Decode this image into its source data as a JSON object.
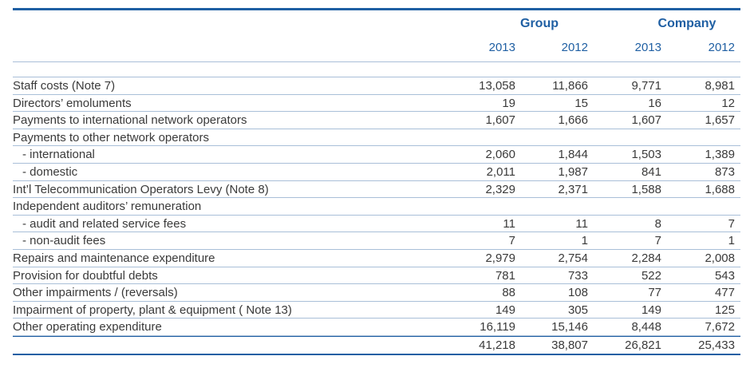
{
  "header": {
    "group_label": "Group",
    "company_label": "Company",
    "years": [
      "2013",
      "2012",
      "2013",
      "2012"
    ]
  },
  "rows": [
    {
      "label": "Staff costs (Note 7)",
      "values": [
        "13,058",
        "11,866",
        "9,771",
        "8,981"
      ],
      "indent": false
    },
    {
      "label": "Directors’ emoluments",
      "values": [
        "19",
        "15",
        "16",
        "12"
      ],
      "indent": false
    },
    {
      "label": "Payments to international network operators",
      "values": [
        "1,607",
        "1,666",
        "1,607",
        "1,657"
      ],
      "indent": false
    },
    {
      "label": "Payments to other network operators",
      "values": [
        "",
        "",
        "",
        ""
      ],
      "indent": false
    },
    {
      "label": "- international",
      "values": [
        "2,060",
        "1,844",
        "1,503",
        "1,389"
      ],
      "indent": true
    },
    {
      "label": "- domestic",
      "values": [
        "2,011",
        "1,987",
        "841",
        "873"
      ],
      "indent": true
    },
    {
      "label": "Int’l Telecommunication Operators Levy (Note 8)",
      "values": [
        "2,329",
        "2,371",
        "1,588",
        "1,688"
      ],
      "indent": false
    },
    {
      "label": "Independent auditors’ remuneration",
      "values": [
        "",
        "",
        "",
        ""
      ],
      "indent": false
    },
    {
      "label": "- audit and related service fees",
      "values": [
        "11",
        "11",
        "8",
        "7"
      ],
      "indent": true
    },
    {
      "label": "- non-audit fees",
      "values": [
        "7",
        "1",
        "7",
        "1"
      ],
      "indent": true
    },
    {
      "label": "Repairs and maintenance expenditure",
      "values": [
        "2,979",
        "2,754",
        "2,284",
        "2,008"
      ],
      "indent": false
    },
    {
      "label": "Provision for doubtful debts",
      "values": [
        "781",
        "733",
        "522",
        "543"
      ],
      "indent": false
    },
    {
      "label": "Other impairments / (reversals)",
      "values": [
        "88",
        "108",
        "77",
        "477"
      ],
      "indent": false
    },
    {
      "label": "Impairment of property, plant & equipment ( Note 13)",
      "values": [
        "149",
        "305",
        "149",
        "125"
      ],
      "indent": false
    },
    {
      "label": "Other operating expenditure",
      "values": [
        "16,119",
        "15,146",
        "8,448",
        "7,672"
      ],
      "indent": false
    }
  ],
  "totals": [
    "41,218",
    "38,807",
    "26,821",
    "25,433"
  ],
  "colors": {
    "accent": "#1f5fa3",
    "rule": "#a9bfd8",
    "text": "#3a3a3a"
  }
}
